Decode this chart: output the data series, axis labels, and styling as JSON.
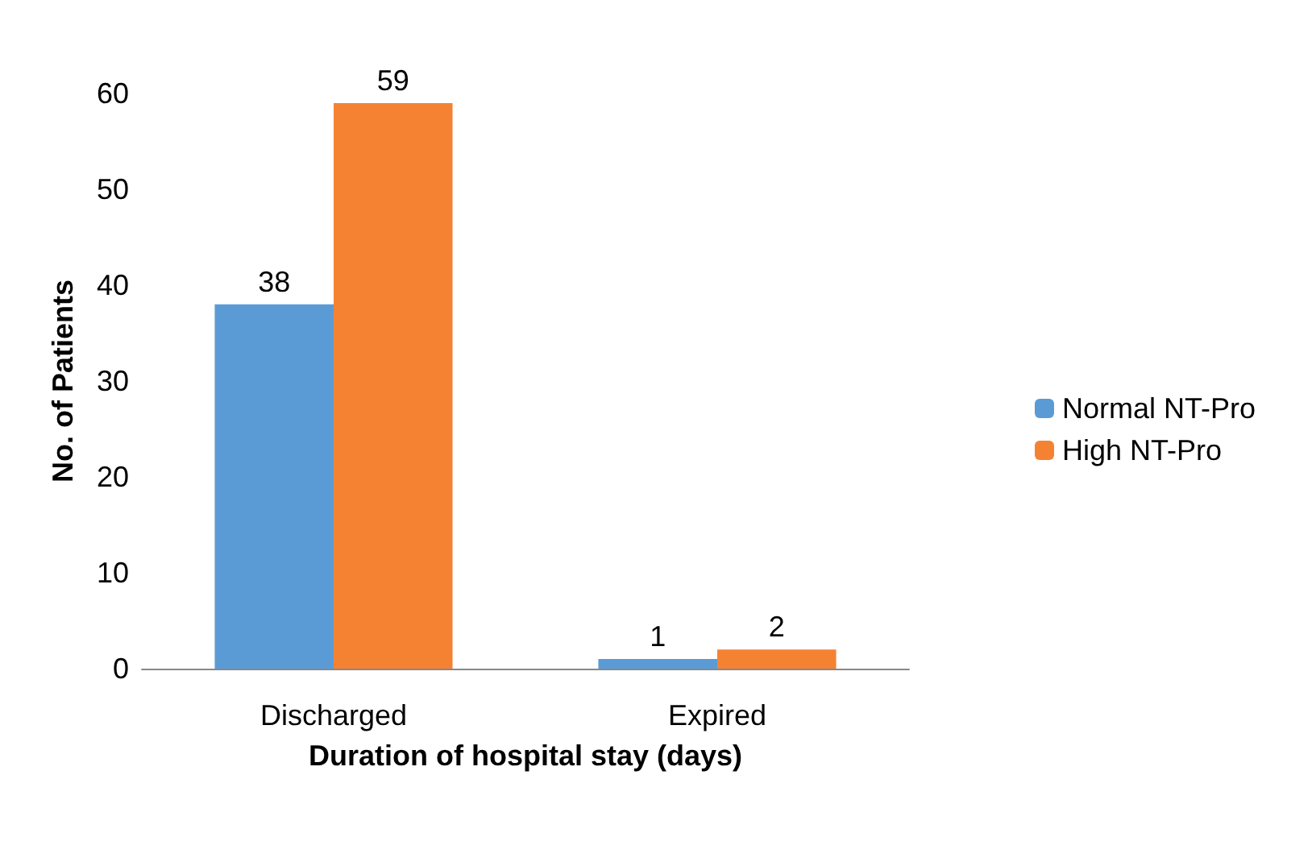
{
  "chart_data": {
    "type": "bar",
    "xlabel": "Duration of hospital stay (days)",
    "ylabel": "No. of Patients",
    "categories": [
      "Discharged",
      "Expired"
    ],
    "series": [
      {
        "name": "Normal NT-Pro",
        "color": "#5b9bd5",
        "values": [
          38,
          1
        ]
      },
      {
        "name": "High NT-Pro",
        "color": "#f58233",
        "values": [
          59,
          2
        ]
      }
    ],
    "ylim": [
      0,
      60
    ],
    "yticks": [
      0,
      10,
      20,
      30,
      40,
      50,
      60
    ],
    "grid": false,
    "legend": "right",
    "data_labels": true
  }
}
